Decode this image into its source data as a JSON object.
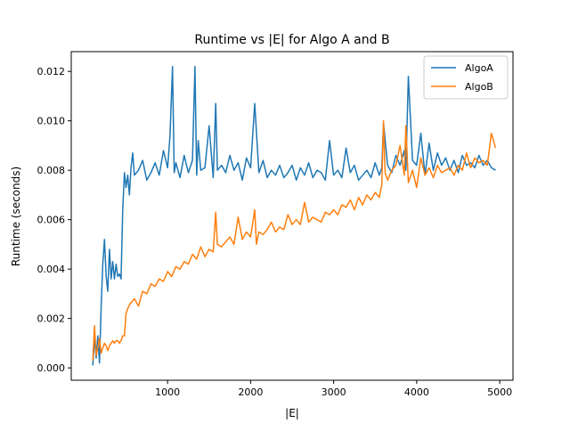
{
  "chart_data": {
    "type": "line",
    "title": "Runtime vs |E| for Algo A and B",
    "xlabel": "|E|",
    "ylabel": "Runtime (seconds)",
    "xlim": [
      -160,
      5160
    ],
    "ylim": [
      -0.0005,
      0.0128
    ],
    "xticks": [
      1000,
      2000,
      3000,
      4000,
      5000
    ],
    "xtick_labels": [
      "1000",
      "2000",
      "3000",
      "4000",
      "5000"
    ],
    "yticks": [
      0,
      0.002,
      0.004,
      0.006,
      0.008,
      0.01,
      0.012
    ],
    "ytick_labels": [
      "0.000",
      "0.002",
      "0.004",
      "0.006",
      "0.008",
      "0.010",
      "0.012"
    ],
    "grid": false,
    "legend": "upper right",
    "series": [
      {
        "name": "AlgoA",
        "color": "#1f77b4",
        "x": [
          100,
          120,
          140,
          160,
          180,
          200,
          220,
          240,
          260,
          280,
          300,
          320,
          340,
          360,
          380,
          400,
          420,
          440,
          460,
          480,
          500,
          520,
          540,
          560,
          580,
          600,
          650,
          700,
          750,
          800,
          850,
          900,
          950,
          1000,
          1030,
          1060,
          1080,
          1100,
          1150,
          1200,
          1250,
          1300,
          1330,
          1350,
          1370,
          1400,
          1450,
          1500,
          1550,
          1580,
          1600,
          1650,
          1700,
          1750,
          1800,
          1850,
          1900,
          1950,
          2000,
          2050,
          2100,
          2150,
          2200,
          2250,
          2300,
          2350,
          2400,
          2450,
          2500,
          2550,
          2600,
          2650,
          2700,
          2750,
          2800,
          2850,
          2900,
          2950,
          3000,
          3050,
          3100,
          3150,
          3200,
          3250,
          3300,
          3350,
          3400,
          3450,
          3500,
          3550,
          3580,
          3600,
          3650,
          3700,
          3750,
          3800,
          3850,
          3870,
          3900,
          3950,
          4000,
          4050,
          4100,
          4150,
          4200,
          4250,
          4300,
          4350,
          4400,
          4450,
          4500,
          4550,
          4600,
          4650,
          4700,
          4750,
          4800,
          4850,
          4900,
          4950
        ],
        "y": [
          0.0001,
          0.0012,
          0.0004,
          0.0013,
          0.0002,
          0.0025,
          0.0042,
          0.0052,
          0.0037,
          0.0031,
          0.0048,
          0.0036,
          0.0043,
          0.0036,
          0.0042,
          0.0037,
          0.0038,
          0.0036,
          0.0064,
          0.0079,
          0.0073,
          0.0078,
          0.007,
          0.0081,
          0.0087,
          0.0078,
          0.008,
          0.0084,
          0.0076,
          0.0079,
          0.0083,
          0.0078,
          0.0088,
          0.0081,
          0.0094,
          0.0122,
          0.0079,
          0.0083,
          0.0077,
          0.0086,
          0.0079,
          0.0084,
          0.0122,
          0.0078,
          0.0092,
          0.008,
          0.0081,
          0.0098,
          0.0077,
          0.0107,
          0.008,
          0.0082,
          0.0079,
          0.0086,
          0.008,
          0.0083,
          0.0076,
          0.0085,
          0.0081,
          0.0107,
          0.0079,
          0.0084,
          0.0077,
          0.008,
          0.0078,
          0.0082,
          0.0077,
          0.0079,
          0.0082,
          0.0076,
          0.0081,
          0.0078,
          0.0083,
          0.0077,
          0.008,
          0.0079,
          0.0076,
          0.0092,
          0.0078,
          0.008,
          0.0077,
          0.0089,
          0.0079,
          0.0082,
          0.0076,
          0.0078,
          0.008,
          0.0077,
          0.0083,
          0.0078,
          0.0081,
          0.0099,
          0.0082,
          0.0079,
          0.0086,
          0.0082,
          0.0088,
          0.008,
          0.0118,
          0.0084,
          0.0082,
          0.0095,
          0.0078,
          0.0091,
          0.008,
          0.0087,
          0.0082,
          0.0085,
          0.008,
          0.0084,
          0.0079,
          0.0086,
          0.0082,
          0.0083,
          0.0081,
          0.0086,
          0.0082,
          0.0084,
          0.0081,
          0.008
        ]
      },
      {
        "name": "AlgoB",
        "color": "#ff7f0e",
        "x": [
          100,
          120,
          140,
          160,
          180,
          200,
          220,
          240,
          260,
          280,
          300,
          320,
          340,
          360,
          380,
          400,
          420,
          440,
          460,
          480,
          500,
          520,
          550,
          600,
          650,
          700,
          750,
          800,
          850,
          900,
          950,
          1000,
          1050,
          1100,
          1150,
          1200,
          1250,
          1300,
          1350,
          1400,
          1450,
          1500,
          1550,
          1580,
          1600,
          1650,
          1700,
          1750,
          1800,
          1850,
          1900,
          1950,
          2000,
          2050,
          2070,
          2100,
          2150,
          2200,
          2250,
          2300,
          2350,
          2400,
          2450,
          2500,
          2550,
          2600,
          2650,
          2700,
          2750,
          2800,
          2850,
          2900,
          2950,
          3000,
          3050,
          3100,
          3150,
          3200,
          3250,
          3300,
          3350,
          3400,
          3450,
          3500,
          3550,
          3580,
          3600,
          3620,
          3650,
          3700,
          3750,
          3800,
          3850,
          3870,
          3900,
          3950,
          4000,
          4050,
          4100,
          4150,
          4200,
          4250,
          4300,
          4350,
          4400,
          4450,
          4500,
          4550,
          4600,
          4650,
          4700,
          4750,
          4800,
          4850,
          4900,
          4950
        ],
        "y": [
          0.0003,
          0.0017,
          0.0005,
          0.0008,
          0.0012,
          0.0006,
          0.0008,
          0.001,
          0.0009,
          0.0007,
          0.0009,
          0.001,
          0.0011,
          0.001,
          0.0011,
          0.0011,
          0.001,
          0.0011,
          0.0013,
          0.0013,
          0.0022,
          0.0024,
          0.0026,
          0.0028,
          0.0025,
          0.0031,
          0.003,
          0.0034,
          0.0033,
          0.0036,
          0.0035,
          0.0039,
          0.0037,
          0.0041,
          0.004,
          0.0043,
          0.0042,
          0.0046,
          0.0044,
          0.0049,
          0.0045,
          0.0048,
          0.0047,
          0.0063,
          0.005,
          0.0049,
          0.0051,
          0.0053,
          0.005,
          0.0061,
          0.0052,
          0.0055,
          0.0053,
          0.0064,
          0.005,
          0.0055,
          0.0054,
          0.0056,
          0.0059,
          0.0055,
          0.0057,
          0.0056,
          0.0062,
          0.0058,
          0.006,
          0.0058,
          0.0067,
          0.0059,
          0.0061,
          0.006,
          0.0059,
          0.0063,
          0.0062,
          0.0064,
          0.0062,
          0.0066,
          0.0065,
          0.0068,
          0.0064,
          0.0069,
          0.0066,
          0.007,
          0.0068,
          0.0071,
          0.0069,
          0.0074,
          0.01,
          0.0079,
          0.0076,
          0.008,
          0.0082,
          0.009,
          0.0078,
          0.0098,
          0.0075,
          0.008,
          0.0073,
          0.0085,
          0.0078,
          0.0081,
          0.0077,
          0.0082,
          0.0079,
          0.008,
          0.0081,
          0.0078,
          0.0082,
          0.008,
          0.0087,
          0.0081,
          0.0085,
          0.0083,
          0.0084,
          0.0082,
          0.0095,
          0.0089
        ]
      }
    ]
  }
}
